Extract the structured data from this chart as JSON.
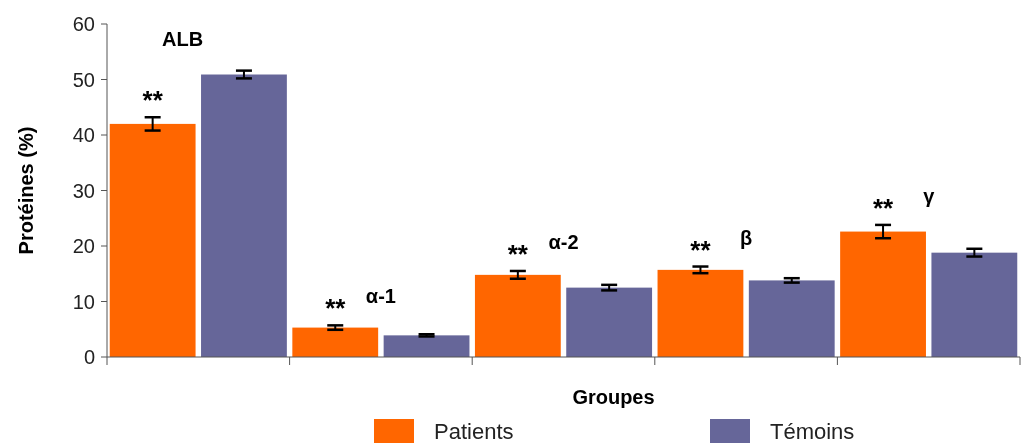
{
  "chart_data": {
    "type": "bar",
    "xlabel": "Groupes",
    "ylabel": "Protéines (%)",
    "categories": [
      "ALB",
      "α-1",
      "α-2",
      "β",
      "γ"
    ],
    "series": [
      {
        "name": "Patients",
        "color": "#ff6600",
        "values": [
          42,
          5.3,
          14.8,
          15.7,
          22.6
        ],
        "errors": [
          1.2,
          0.4,
          0.7,
          0.6,
          1.2
        ]
      },
      {
        "name": "Témoins",
        "color": "#666699",
        "values": [
          50.9,
          3.9,
          12.5,
          13.8,
          18.8
        ],
        "errors": [
          0.7,
          0.2,
          0.5,
          0.4,
          0.7
        ]
      }
    ],
    "ylim": [
      0,
      60
    ],
    "yticks": [
      0,
      10,
      20,
      30,
      40,
      50,
      60
    ],
    "grid": false,
    "legend": "bottom",
    "annotations": [
      "**",
      "**",
      "**",
      "**",
      "**"
    ]
  }
}
